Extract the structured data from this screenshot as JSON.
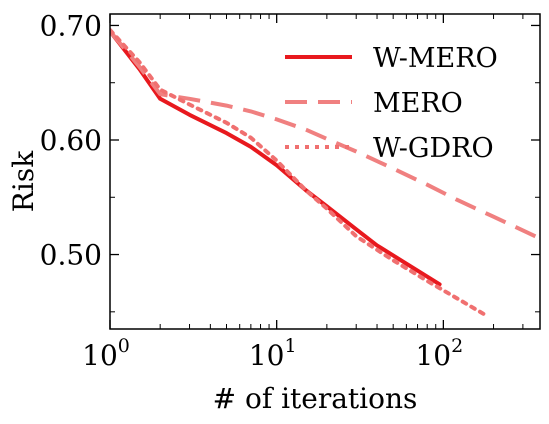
{
  "chart_data": {
    "type": "line",
    "xlabel": "# of iterations",
    "ylabel": "Risk",
    "xscale": "log",
    "xlim": [
      1,
      380
    ],
    "ylim": [
      0.435,
      0.71
    ],
    "x_ticks": [
      {
        "value": 1,
        "base": "10",
        "exp": "0"
      },
      {
        "value": 10,
        "base": "10",
        "exp": "1"
      },
      {
        "value": 100,
        "base": "10",
        "exp": "2"
      }
    ],
    "y_ticks": [
      {
        "value": 0.5,
        "label": "0.50"
      },
      {
        "value": 0.6,
        "label": "0.60"
      },
      {
        "value": 0.7,
        "label": "0.70"
      }
    ],
    "legend_position": "top-right",
    "grid": false,
    "series": [
      {
        "name": "W-MERO",
        "style": "solid",
        "color": "#e8191e",
        "x": [
          1,
          1.5,
          2,
          3,
          5,
          7,
          10,
          15,
          20,
          30,
          40,
          60,
          95
        ],
        "y": [
          0.695,
          0.662,
          0.636,
          0.622,
          0.606,
          0.594,
          0.578,
          0.556,
          0.542,
          0.522,
          0.508,
          0.492,
          0.474
        ]
      },
      {
        "name": "MERO",
        "style": "dashed",
        "color": "#f08080",
        "x": [
          1,
          1.5,
          2,
          3,
          5,
          7,
          10,
          15,
          20,
          30,
          50,
          80,
          120,
          200,
          380
        ],
        "y": [
          0.695,
          0.664,
          0.64,
          0.636,
          0.63,
          0.625,
          0.618,
          0.609,
          0.601,
          0.59,
          0.575,
          0.561,
          0.548,
          0.533,
          0.514
        ]
      },
      {
        "name": "W-GDRO",
        "style": "dotted",
        "color": "#f07070",
        "x": [
          1,
          1.5,
          2,
          3,
          5,
          7,
          10,
          15,
          20,
          30,
          50,
          80,
          120,
          175
        ],
        "y": [
          0.696,
          0.668,
          0.644,
          0.631,
          0.615,
          0.602,
          0.582,
          0.556,
          0.54,
          0.516,
          0.495,
          0.477,
          0.462,
          0.448
        ]
      }
    ]
  }
}
